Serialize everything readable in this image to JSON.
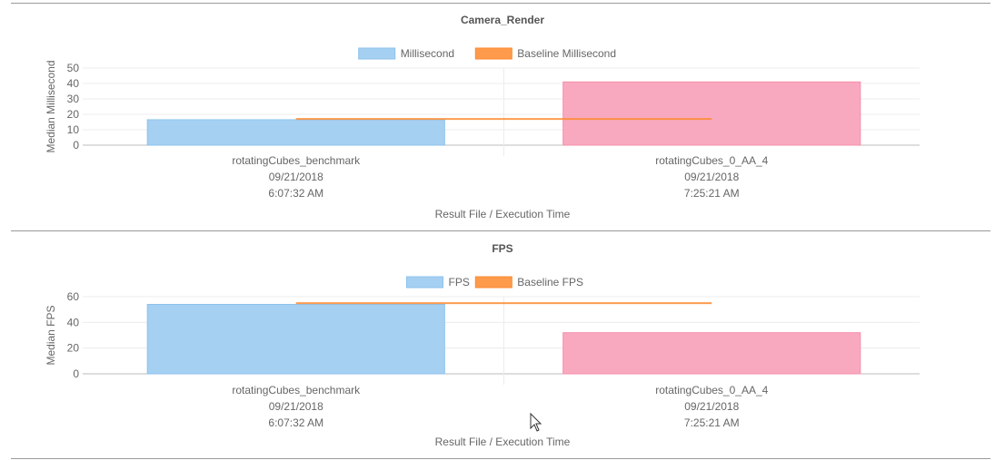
{
  "chart_data": [
    {
      "type": "bar",
      "title": "Camera_Render",
      "categories": [
        [
          "rotatingCubes_benchmark",
          "09/21/2018",
          "6:07:32 AM"
        ],
        [
          "rotatingCubes_0_AA_4",
          "09/21/2018",
          "7:25:21 AM"
        ]
      ],
      "series": [
        {
          "name": "Millisecond",
          "type": "bar",
          "values": [
            16.5,
            41
          ],
          "colors": [
            "#a6d0f2",
            "#f9a9bf"
          ]
        },
        {
          "name": "Baseline Millisecond",
          "type": "line",
          "values": [
            17,
            17
          ],
          "color": "#fd9a4c"
        }
      ],
      "ylabel": "Median Millisecond",
      "xlabel": "Result File / Execution Time",
      "ylim": [
        0,
        50
      ],
      "yticks": [
        0,
        10,
        20,
        30,
        40,
        50
      ],
      "legend": "top-center",
      "grid": true
    },
    {
      "type": "bar",
      "title": "FPS",
      "categories": [
        [
          "rotatingCubes_benchmark",
          "09/21/2018",
          "6:07:32 AM"
        ],
        [
          "rotatingCubes_0_AA_4",
          "09/21/2018",
          "7:25:21 AM"
        ]
      ],
      "series": [
        {
          "name": "FPS",
          "type": "bar",
          "values": [
            54,
            32
          ],
          "colors": [
            "#a6d0f2",
            "#f9a9bf"
          ]
        },
        {
          "name": "Baseline FPS",
          "type": "line",
          "values": [
            55,
            55
          ],
          "color": "#fd9a4c"
        }
      ],
      "ylabel": "Median FPS",
      "xlabel": "Result File / Execution Time",
      "ylim": [
        0,
        60
      ],
      "yticks": [
        0,
        20,
        40,
        60
      ],
      "legend": "top-center",
      "grid": true
    }
  ]
}
